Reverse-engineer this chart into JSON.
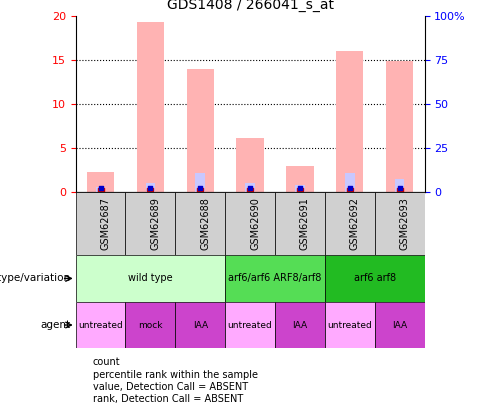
{
  "title": "GDS1408 / 266041_s_at",
  "samples": [
    "GSM62687",
    "GSM62689",
    "GSM62688",
    "GSM62690",
    "GSM62691",
    "GSM62692",
    "GSM62693"
  ],
  "count_values": [
    2.3,
    19.3,
    14.0,
    6.2,
    3.0,
    16.1,
    14.9
  ],
  "percentile_values": [
    0.6,
    1.1,
    2.2,
    1.1,
    0.8,
    2.2,
    1.5
  ],
  "ylim_left": [
    0,
    20
  ],
  "ylim_right": [
    0,
    100
  ],
  "yticks_left": [
    0,
    5,
    10,
    15,
    20
  ],
  "yticks_right": [
    0,
    25,
    50,
    75,
    100
  ],
  "yticklabels_right": [
    "0",
    "25",
    "50",
    "75",
    "100%"
  ],
  "bar_color_pink": "#FFB3B3",
  "bar_color_blue": "#C8C8FF",
  "dot_color_red": "#CC0000",
  "dot_color_blue": "#0000CC",
  "sample_box_color": "#D0D0D0",
  "genotype_groups": [
    {
      "label": "wild type",
      "span": [
        0,
        3
      ],
      "color": "#CCFFCC"
    },
    {
      "label": "arf6/arf6 ARF8/arf8",
      "span": [
        3,
        5
      ],
      "color": "#55DD55"
    },
    {
      "label": "arf6 arf8",
      "span": [
        5,
        7
      ],
      "color": "#22BB22"
    }
  ],
  "agent_groups": [
    {
      "label": "untreated",
      "span": [
        0,
        1
      ],
      "color": "#FFAAFF"
    },
    {
      "label": "mock",
      "span": [
        1,
        2
      ],
      "color": "#CC44CC"
    },
    {
      "label": "IAA",
      "span": [
        2,
        3
      ],
      "color": "#CC44CC"
    },
    {
      "label": "untreated",
      "span": [
        3,
        4
      ],
      "color": "#FFAAFF"
    },
    {
      "label": "IAA",
      "span": [
        4,
        5
      ],
      "color": "#CC44CC"
    },
    {
      "label": "untreated",
      "span": [
        5,
        6
      ],
      "color": "#FFAAFF"
    },
    {
      "label": "IAA",
      "span": [
        6,
        7
      ],
      "color": "#CC44CC"
    }
  ],
  "legend_items": [
    {
      "label": "count",
      "color": "#CC0000"
    },
    {
      "label": "percentile rank within the sample",
      "color": "#0000CC"
    },
    {
      "label": "value, Detection Call = ABSENT",
      "color": "#FFB3B3"
    },
    {
      "label": "rank, Detection Call = ABSENT",
      "color": "#C8C8FF"
    }
  ],
  "label_genotype": "genotype/variation",
  "label_agent": "agent"
}
